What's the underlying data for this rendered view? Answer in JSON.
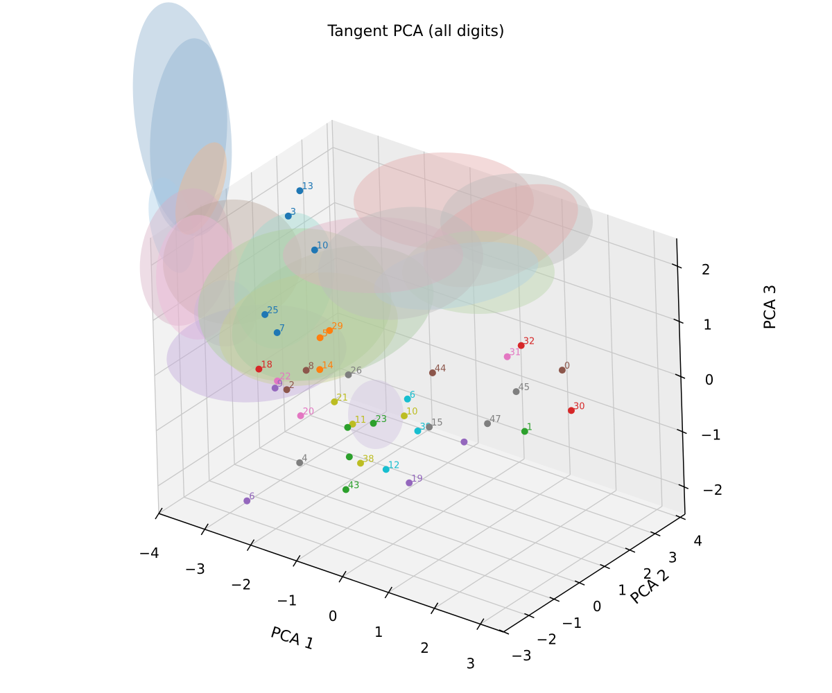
{
  "chart_data": {
    "type": "scatter",
    "title": "Tangent PCA (all digits)",
    "xlabel": "PCA 1",
    "ylabel": "PCA 2",
    "zlabel": "PCA 3",
    "xlim": [
      -4,
      3.5
    ],
    "ylim": [
      -3,
      4.2
    ],
    "zlim": [
      -2.5,
      2.5
    ],
    "x_ticks": [
      -4,
      -3,
      -2,
      -1,
      0,
      1,
      2,
      3
    ],
    "y_ticks": [
      -3,
      -2,
      -1,
      0,
      1,
      2,
      3,
      4
    ],
    "z_ticks": [
      -2,
      -1,
      0,
      1,
      2
    ],
    "x_tick_labels": [
      "−4",
      "−3",
      "−2",
      "−1",
      "0",
      "1",
      "2",
      "3"
    ],
    "y_tick_labels": [
      "−3",
      "−2",
      "−1",
      "0",
      "1",
      "2",
      "3",
      "4"
    ],
    "z_tick_labels": [
      "−2",
      "−1",
      "0",
      "1",
      "2"
    ],
    "grid": true,
    "points": [
      {
        "label": "13",
        "x": -3.4,
        "y": 1.8,
        "z": 2.1,
        "color": "#1f77b4"
      },
      {
        "label": "3",
        "x": -3.5,
        "y": 1.5,
        "z": 1.7,
        "color": "#1f77b4"
      },
      {
        "label": "10",
        "x": -3.0,
        "y": 1.6,
        "z": 1.2,
        "color": "#1f77b4"
      },
      {
        "label": "25",
        "x": -3.4,
        "y": 0.3,
        "z": 0.3,
        "color": "#1f77b4"
      },
      {
        "label": "7",
        "x": -3.2,
        "y": 0.4,
        "z": 0.0,
        "color": "#1f77b4"
      },
      {
        "label": "29",
        "x": -2.5,
        "y": 1.2,
        "z": 0.0,
        "color": "#ff7f0e"
      },
      {
        "label": "5",
        "x": -2.6,
        "y": 1.0,
        "z": -0.1,
        "color": "#ff7f0e"
      },
      {
        "label": "14",
        "x": -2.4,
        "y": 0.6,
        "z": -0.5,
        "color": "#ff7f0e"
      },
      {
        "label": "8",
        "x": -2.7,
        "y": 0.6,
        "z": -0.6,
        "color": "#8c564b"
      },
      {
        "label": "2",
        "x": -2.8,
        "y": 0.0,
        "z": -0.8,
        "color": "#8c564b"
      },
      {
        "label": "18",
        "x": -3.4,
        "y": 0.0,
        "z": -0.6,
        "color": "#d62728"
      },
      {
        "label": "22",
        "x": -3.0,
        "y": 0.0,
        "z": -0.7,
        "color": "#e377c2"
      },
      {
        "label": "9",
        "x": -3.0,
        "y": -0.1,
        "z": -0.8,
        "color": "#9467bd"
      },
      {
        "label": "26",
        "x": -2.0,
        "y": 1.0,
        "z": -0.6,
        "color": "#7f7f7f"
      },
      {
        "label": "21",
        "x": -2.1,
        "y": 0.6,
        "z": -1.0,
        "color": "#bcbd22"
      },
      {
        "label": "20",
        "x": -2.4,
        "y": -0.2,
        "z": -1.1,
        "color": "#e377c2"
      },
      {
        "label": "11",
        "x": -1.6,
        "y": 0.4,
        "z": -1.2,
        "color": "#bcbd22"
      },
      {
        "label": "23",
        "x": -1.2,
        "y": 0.5,
        "z": -1.1,
        "color": "#2ca02c"
      },
      {
        "label": "6",
        "x": -1.0,
        "y": 1.5,
        "z": -0.9,
        "color": "#17becf"
      },
      {
        "label": "10",
        "x": -0.8,
        "y": 1.0,
        "z": -1.0,
        "color": "#bcbd22"
      },
      {
        "label": "44",
        "x": -0.6,
        "y": 1.8,
        "z": -0.4,
        "color": "#8c564b"
      },
      {
        "label": "39",
        "x": -0.4,
        "y": 0.8,
        "z": -1.1,
        "color": "#17becf"
      },
      {
        "label": "15",
        "x": -0.2,
        "y": 0.9,
        "z": -1.0,
        "color": "#7f7f7f"
      },
      {
        "label": "38",
        "x": -1.0,
        "y": -0.4,
        "z": -1.5,
        "color": "#bcbd22"
      },
      {
        "label": "12",
        "x": -0.5,
        "y": -0.3,
        "z": -1.5,
        "color": "#17becf"
      },
      {
        "label": "19",
        "x": 0.0,
        "y": -0.3,
        "z": -1.6,
        "color": "#9467bd"
      },
      {
        "label": "4",
        "x": -2.0,
        "y": -1.0,
        "z": -1.6,
        "color": "#7f7f7f"
      },
      {
        "label": "43",
        "x": -1.0,
        "y": -1.0,
        "z": -1.8,
        "color": "#2ca02c"
      },
      {
        "label": "6",
        "x": -2.9,
        "y": -1.5,
        "z": -2.4,
        "color": "#9467bd"
      },
      {
        "label": "32",
        "x": 0.8,
        "y": 2.8,
        "z": 0.2,
        "color": "#d62728"
      },
      {
        "label": "31",
        "x": 0.6,
        "y": 2.6,
        "z": 0.0,
        "color": "#e377c2"
      },
      {
        "label": "0",
        "x": 1.8,
        "y": 2.6,
        "z": 0.1,
        "color": "#8c564b"
      },
      {
        "label": "30",
        "x": 2.2,
        "y": 2.2,
        "z": -0.4,
        "color": "#d62728"
      },
      {
        "label": "45",
        "x": 1.0,
        "y": 2.2,
        "z": -0.4,
        "color": "#7f7f7f"
      },
      {
        "label": "47",
        "x": 0.8,
        "y": 1.4,
        "z": -0.8,
        "color": "#7f7f7f"
      },
      {
        "label": "1",
        "x": 1.5,
        "y": 1.6,
        "z": -0.8,
        "color": "#2ca02c"
      },
      {
        "label": "",
        "x": 0.5,
        "y": 1.0,
        "z": -1.1,
        "color": "#9467bd"
      },
      {
        "label": "",
        "x": -1.6,
        "y": 0.2,
        "z": -1.2,
        "color": "#2ca02c"
      },
      {
        "label": "",
        "x": -1.3,
        "y": -0.3,
        "z": -1.5,
        "color": "#2ca02c"
      }
    ],
    "ellipsoids": [
      {
        "cx": 263,
        "cy": 172,
        "rx": 68,
        "ry": 170,
        "rot": -8,
        "color": "#8aaecc"
      },
      {
        "cx": 272,
        "cy": 195,
        "rx": 55,
        "ry": 140,
        "rot": 4,
        "color": "#8aaecc"
      },
      {
        "cx": 247,
        "cy": 325,
        "rx": 30,
        "ry": 70,
        "rot": -12,
        "color": "#a7cde6"
      },
      {
        "cx": 290,
        "cy": 272,
        "rx": 30,
        "ry": 70,
        "rot": 20,
        "color": "#f6b480"
      },
      {
        "cx": 268,
        "cy": 371,
        "rx": 65,
        "ry": 100,
        "rot": 10,
        "color": "#d7aec3"
      },
      {
        "cx": 335,
        "cy": 378,
        "rx": 100,
        "ry": 90,
        "rot": -5,
        "color": "#b8a598"
      },
      {
        "cx": 285,
        "cy": 400,
        "rx": 60,
        "ry": 90,
        "rot": 0,
        "color": "#f0b7d9"
      },
      {
        "cx": 325,
        "cy": 452,
        "rx": 45,
        "ry": 48,
        "rot": 0,
        "color": "#c7b4d9"
      },
      {
        "cx": 370,
        "cy": 510,
        "rx": 130,
        "ry": 70,
        "rot": -5,
        "color": "#c2a8dc"
      },
      {
        "cx": 410,
        "cy": 405,
        "rx": 70,
        "ry": 100,
        "rot": 15,
        "color": "#9ad8cf"
      },
      {
        "cx": 425,
        "cy": 440,
        "rx": 140,
        "ry": 110,
        "rot": -8,
        "color": "#a9cf98"
      },
      {
        "cx": 445,
        "cy": 475,
        "rx": 130,
        "ry": 80,
        "rot": -10,
        "color": "#c7d08e"
      },
      {
        "cx": 480,
        "cy": 452,
        "rx": 150,
        "ry": 90,
        "rot": -18,
        "color": "#a8c9a0"
      },
      {
        "cx": 640,
        "cy": 290,
        "rx": 130,
        "ry": 70,
        "rot": 0,
        "color": "#e3a6a6"
      },
      {
        "cx": 745,
        "cy": 320,
        "rx": 110,
        "ry": 70,
        "rot": 0,
        "color": "#b9b9b9"
      },
      {
        "cx": 722,
        "cy": 340,
        "rx": 120,
        "ry": 60,
        "rot": -25,
        "color": "#e3a6a6"
      },
      {
        "cx": 690,
        "cy": 393,
        "rx": 110,
        "ry": 60,
        "rot": 0,
        "color": "#b7d4a8"
      },
      {
        "cx": 658,
        "cy": 398,
        "rx": 120,
        "ry": 45,
        "rot": -10,
        "color": "#b1cfe0"
      },
      {
        "cx": 538,
        "cy": 368,
        "rx": 130,
        "ry": 55,
        "rot": 0,
        "color": "#e0adc0"
      },
      {
        "cx": 578,
        "cy": 380,
        "rx": 120,
        "ry": 80,
        "rot": -10,
        "color": "#bdbdbd"
      },
      {
        "cx": 542,
        "cy": 598,
        "rx": 40,
        "ry": 50,
        "rot": 0,
        "color": "#cfc0e0"
      }
    ]
  }
}
